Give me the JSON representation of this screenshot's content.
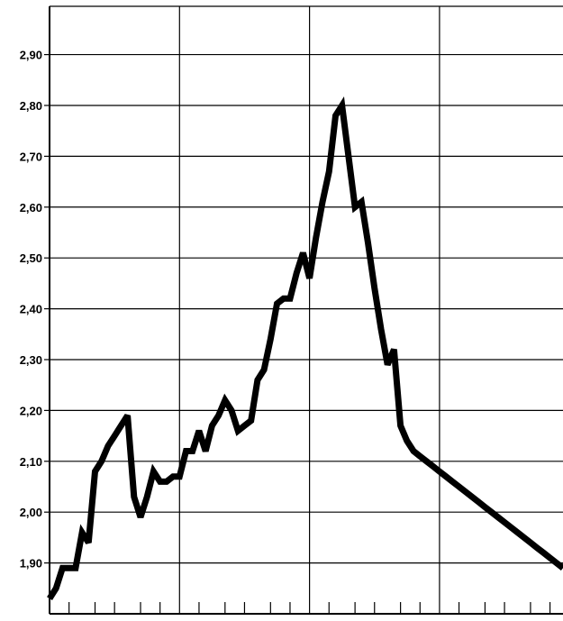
{
  "chart_data": {
    "type": "line",
    "title": "",
    "xlabel": "",
    "ylabel": "",
    "grid": true,
    "colors": {
      "line": "#000000",
      "grid": "#000000",
      "background": "#ffffff"
    },
    "ylim": [
      1.8,
      2.995
    ],
    "xlim": [
      0,
      79
    ],
    "yticks": [
      1.9,
      2.0,
      2.1,
      2.2,
      2.3,
      2.4,
      2.5,
      2.6,
      2.7,
      2.8,
      2.9
    ],
    "ytick_labels": [
      "1,90",
      "2,00",
      "2,10",
      "2,20",
      "2,30",
      "2,40",
      "2,50",
      "2,60",
      "2,70",
      "2,80",
      "2,90"
    ],
    "x_major_grid": [
      0,
      20,
      40,
      60
    ],
    "x_minor_ticks": [
      3,
      7,
      10,
      14,
      17,
      23,
      27,
      30,
      34,
      37,
      43,
      47,
      50,
      54,
      57,
      63,
      67,
      70,
      74,
      77
    ],
    "series": [
      {
        "x": [
          0,
          1,
          2,
          3,
          4,
          5,
          6,
          7,
          8,
          9,
          10,
          11,
          12,
          13,
          14,
          15,
          16,
          17,
          18,
          19,
          20,
          21,
          22,
          23,
          24,
          25,
          26,
          27,
          28,
          29,
          30,
          31,
          32,
          33,
          34,
          35,
          36,
          37,
          38,
          39,
          40,
          41,
          42,
          43,
          44,
          45,
          46,
          47,
          48,
          49,
          50,
          51,
          52,
          53,
          54,
          55,
          56,
          57,
          58,
          59,
          60,
          61,
          62,
          63,
          64,
          65,
          66,
          67,
          68,
          69,
          70,
          71,
          72,
          73,
          74,
          75,
          76,
          77,
          78,
          79
        ],
        "y": [
          1.83,
          1.85,
          1.89,
          1.89,
          1.89,
          1.96,
          1.94,
          2.08,
          2.1,
          2.13,
          2.15,
          2.17,
          2.19,
          2.03,
          1.99,
          2.03,
          2.08,
          2.06,
          2.06,
          2.07,
          2.07,
          2.12,
          2.12,
          2.16,
          2.12,
          2.17,
          2.19,
          2.22,
          2.2,
          2.16,
          2.17,
          2.18,
          2.26,
          2.28,
          2.34,
          2.41,
          2.42,
          2.42,
          2.47,
          2.51,
          2.46,
          2.54,
          2.61,
          2.67,
          2.78,
          2.8,
          2.7,
          2.6,
          2.61,
          2.53,
          2.44,
          2.36,
          2.29,
          2.32,
          2.17,
          2.14,
          2.12,
          2.11,
          2.1,
          2.09,
          2.08,
          2.07,
          2.06,
          2.05,
          2.04,
          2.03,
          2.02,
          2.01,
          2.0,
          1.99,
          1.98,
          1.97,
          1.96,
          1.95,
          1.94,
          1.93,
          1.92,
          1.91,
          1.9,
          1.89
        ]
      }
    ]
  }
}
